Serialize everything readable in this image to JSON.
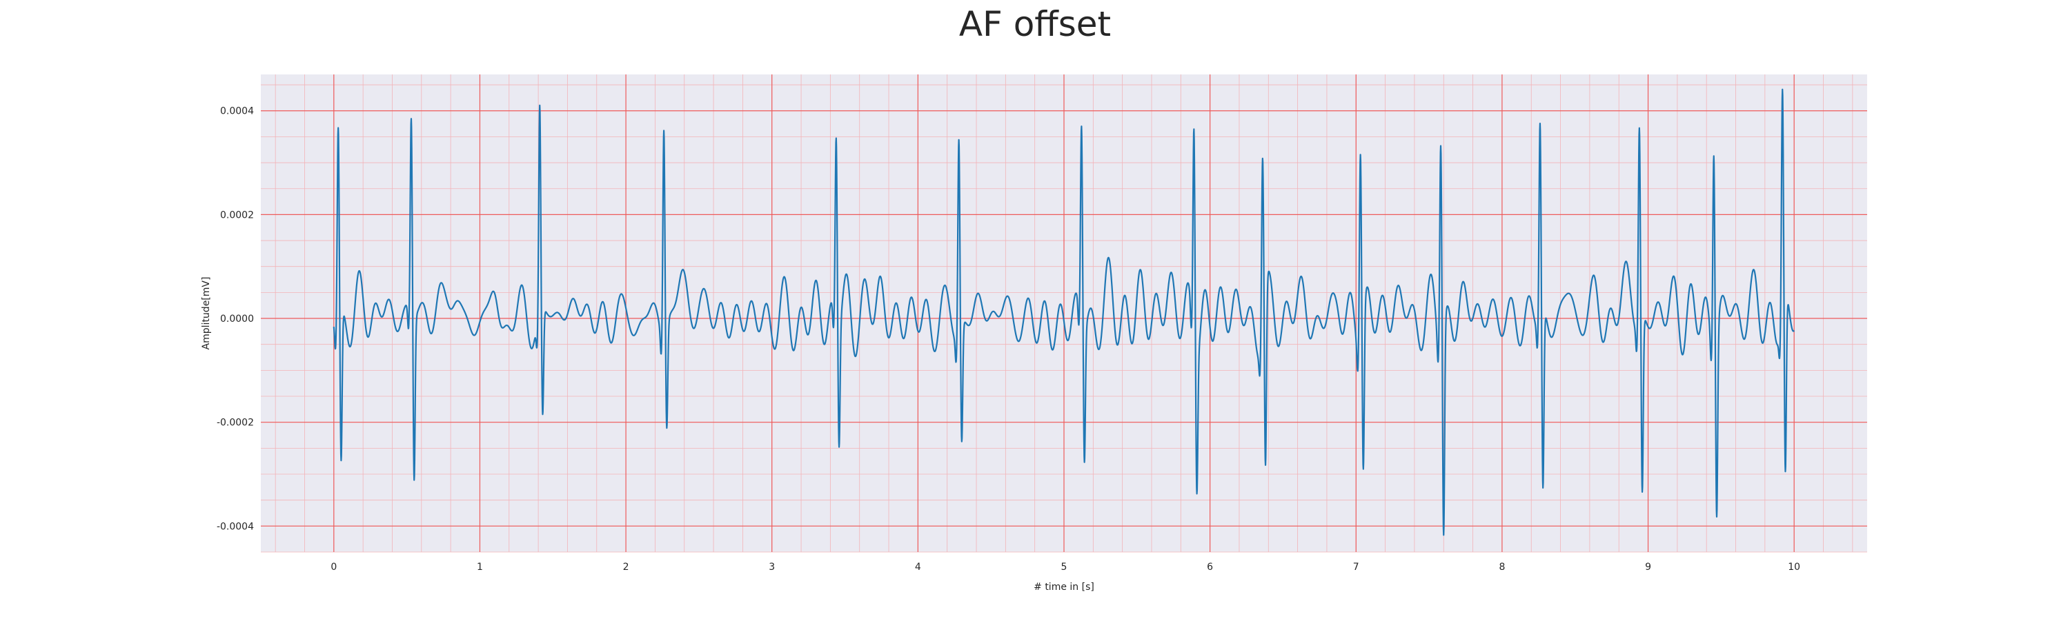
{
  "chart_data": {
    "type": "line",
    "title": "AF offset",
    "xlabel": "# time in [s]",
    "ylabel": "Amplitude[mV]",
    "xlim": [
      -0.5,
      10.5
    ],
    "ylim": [
      -0.00045,
      0.00047
    ],
    "x_ticks": [
      0,
      1,
      2,
      3,
      4,
      5,
      6,
      7,
      8,
      9,
      10
    ],
    "x_tick_labels": [
      "0",
      "1",
      "2",
      "3",
      "4",
      "5",
      "6",
      "7",
      "8",
      "9",
      "10"
    ],
    "y_ticks": [
      -0.0004,
      -0.0002,
      0.0,
      0.0002,
      0.0004
    ],
    "y_tick_labels": [
      "-0.0004",
      "-0.0002",
      "0.0000",
      "0.0002",
      "0.0004"
    ],
    "grid": true,
    "minor_grid": true,
    "series": [
      {
        "color": "#1f77b4",
        "duration": 10.0,
        "beats": [
          {
            "t": 0.03,
            "r": 0.000375,
            "s": -0.00029
          },
          {
            "t": 0.53,
            "r": 0.000375,
            "s": -0.00032
          },
          {
            "t": 1.41,
            "r": 0.000398,
            "s": -0.00021
          },
          {
            "t": 2.26,
            "r": 0.000395,
            "s": -0.0002
          },
          {
            "t": 3.44,
            "r": 0.000355,
            "s": -0.000235
          },
          {
            "t": 4.28,
            "r": 0.000375,
            "s": -0.00023
          },
          {
            "t": 5.12,
            "r": 0.000378,
            "s": -0.00026
          },
          {
            "t": 5.89,
            "r": 0.00041,
            "s": -0.000265
          },
          {
            "t": 6.36,
            "r": 0.000318,
            "s": -0.00035
          },
          {
            "t": 7.03,
            "r": 0.00037,
            "s": -0.0003
          },
          {
            "t": 7.58,
            "r": 0.00039,
            "s": -0.000405
          },
          {
            "t": 8.26,
            "r": 0.000378,
            "s": -0.000345
          },
          {
            "t": 8.94,
            "r": 0.000378,
            "s": -0.000342
          },
          {
            "t": 9.45,
            "r": 0.000378,
            "s": -0.000353
          },
          {
            "t": 9.92,
            "r": 0.000425,
            "s": -0.00035
          }
        ]
      }
    ]
  }
}
